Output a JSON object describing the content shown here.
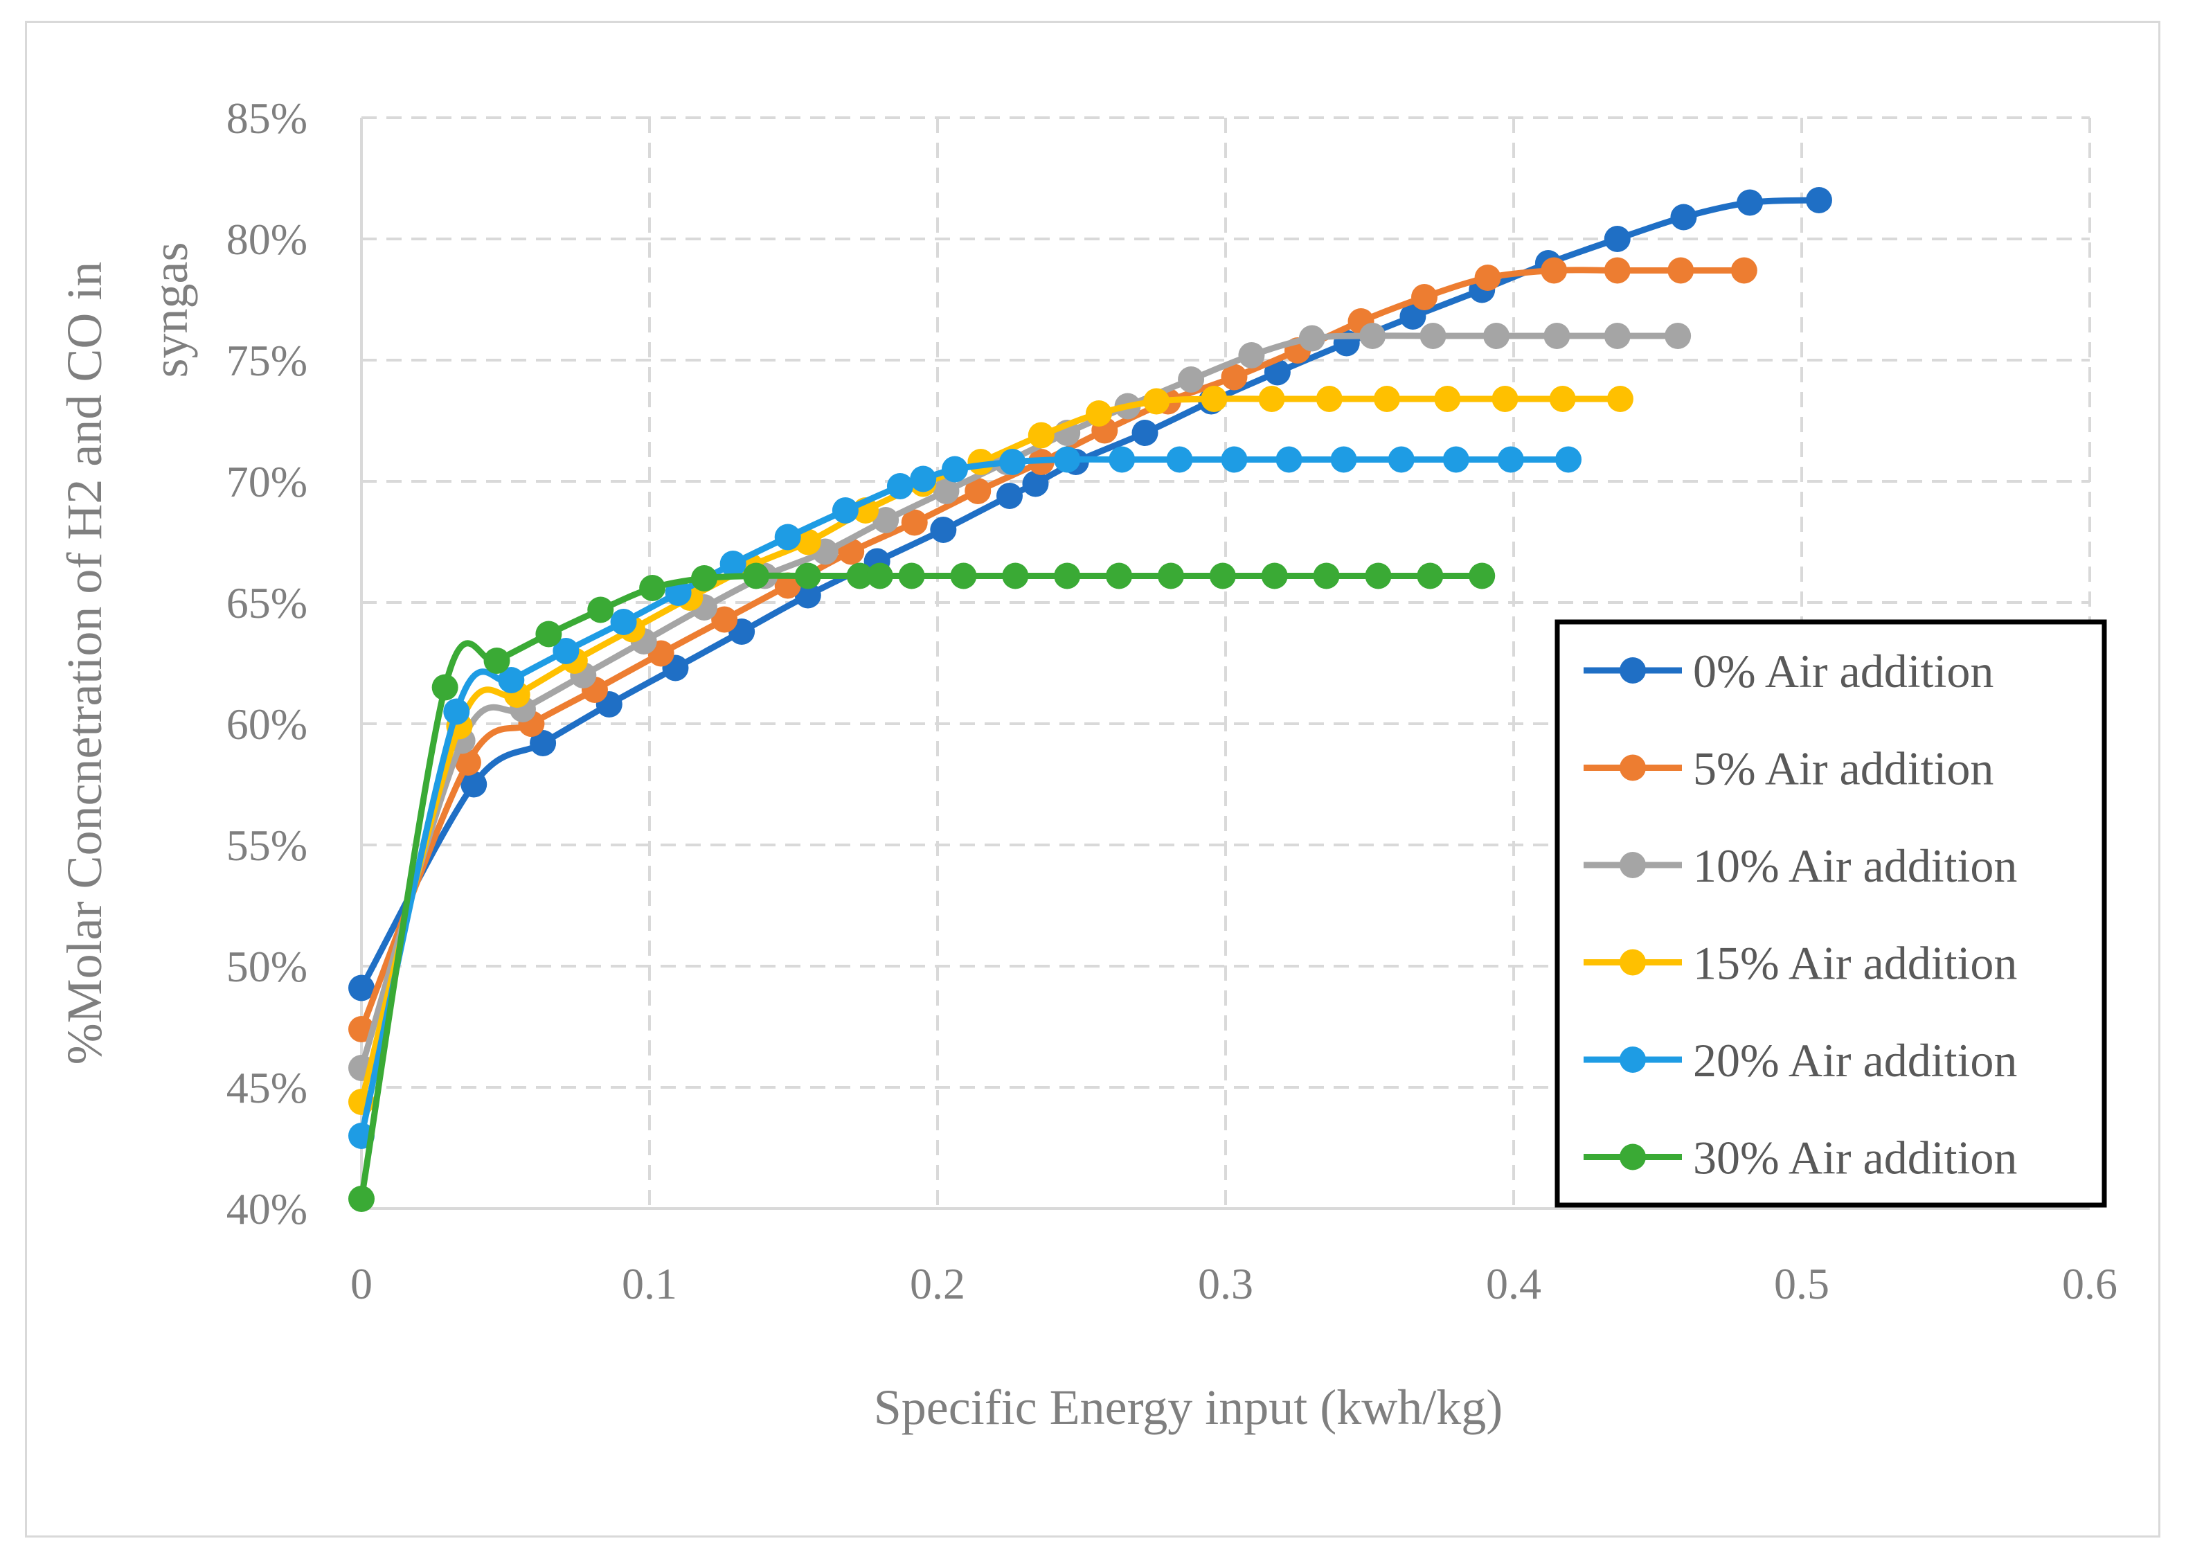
{
  "chart_data": {
    "type": "line",
    "title": "",
    "xlabel": "Specific Energy input (kwh/kg)",
    "ylabel": "%Molar Concnetration of  H2 and CO in syngas",
    "ylabel_lines": [
      "%Molar Concnetration of  H2 and CO in",
      "syngas"
    ],
    "xlim": [
      0,
      0.6
    ],
    "ylim": [
      40,
      85
    ],
    "x_ticks": [
      0,
      0.1,
      0.2,
      0.3,
      0.4,
      0.5,
      0.6
    ],
    "x_tick_labels": [
      "0",
      "0.1",
      "0.2",
      "0.3",
      "0.4",
      "0.5",
      "0.6"
    ],
    "y_ticks": [
      40,
      45,
      50,
      55,
      60,
      65,
      70,
      75,
      80,
      85
    ],
    "y_tick_labels": [
      "40%",
      "45%",
      "50%",
      "55%",
      "60%",
      "65%",
      "70%",
      "75%",
      "80%",
      "85%"
    ],
    "grid": true,
    "legend_position": "right",
    "series": [
      {
        "name": "0% Air addition",
        "color": "#1f6fc5",
        "x": [
          0,
          0.039,
          0.063,
          0.086,
          0.109,
          0.132,
          0.155,
          0.179,
          0.202,
          0.225,
          0.234,
          0.248,
          0.272,
          0.295,
          0.318,
          0.342,
          0.365,
          0.389,
          0.412,
          0.436,
          0.459,
          0.482,
          0.506
        ],
        "y": [
          49.1,
          57.5,
          59.2,
          60.8,
          62.3,
          63.8,
          65.3,
          66.7,
          68.0,
          69.4,
          69.9,
          70.8,
          72.0,
          73.3,
          74.5,
          75.7,
          76.8,
          77.9,
          79.0,
          80.0,
          80.9,
          81.5,
          81.6
        ]
      },
      {
        "name": "5% Air addition",
        "color": "#ed7d31",
        "x": [
          0,
          0.037,
          0.059,
          0.081,
          0.104,
          0.126,
          0.148,
          0.17,
          0.192,
          0.214,
          0.236,
          0.258,
          0.28,
          0.303,
          0.325,
          0.347,
          0.369,
          0.391,
          0.414,
          0.436,
          0.458,
          0.48
        ],
        "y": [
          47.4,
          58.4,
          60.0,
          61.4,
          62.9,
          64.3,
          65.7,
          67.1,
          68.3,
          69.6,
          70.8,
          72.1,
          73.3,
          74.3,
          75.4,
          76.6,
          77.6,
          78.4,
          78.7,
          78.7,
          78.7,
          78.7
        ]
      },
      {
        "name": "10% Air addition",
        "color": "#a5a5a5",
        "x": [
          0,
          0.035,
          0.056,
          0.077,
          0.098,
          0.119,
          0.14,
          0.161,
          0.182,
          0.203,
          0.224,
          0.245,
          0.266,
          0.288,
          0.309,
          0.33,
          0.351,
          0.372,
          0.394,
          0.415,
          0.436,
          0.457
        ],
        "y": [
          45.8,
          59.3,
          60.6,
          62.0,
          63.4,
          64.8,
          66.1,
          67.1,
          68.4,
          69.6,
          70.8,
          72.0,
          73.1,
          74.2,
          75.2,
          75.9,
          76.0,
          76.0,
          76.0,
          76.0,
          76.0,
          76.0
        ]
      },
      {
        "name": "15% Air addition",
        "color": "#ffc000",
        "x": [
          0,
          0.034,
          0.054,
          0.074,
          0.094,
          0.114,
          0.135,
          0.155,
          0.175,
          0.195,
          0.215,
          0.236,
          0.256,
          0.276,
          0.296,
          0.316,
          0.336,
          0.356,
          0.377,
          0.397,
          0.417,
          0.437
        ],
        "y": [
          44.4,
          59.9,
          61.2,
          62.6,
          63.9,
          65.2,
          66.5,
          67.5,
          68.8,
          69.9,
          70.8,
          71.9,
          72.8,
          73.3,
          73.4,
          73.4,
          73.4,
          73.4,
          73.4,
          73.4,
          73.4,
          73.4
        ]
      },
      {
        "name": "20% Air addition",
        "color": "#1e9ce4",
        "x": [
          0,
          0.033,
          0.052,
          0.071,
          0.091,
          0.11,
          0.129,
          0.148,
          0.168,
          0.187,
          0.195,
          0.206,
          0.226,
          0.245,
          0.264,
          0.284,
          0.303,
          0.322,
          0.341,
          0.361,
          0.38,
          0.399,
          0.419
        ],
        "y": [
          43.0,
          60.5,
          61.8,
          63.0,
          64.2,
          65.4,
          66.6,
          67.7,
          68.8,
          69.8,
          70.1,
          70.5,
          70.8,
          70.9,
          70.9,
          70.9,
          70.9,
          70.9,
          70.9,
          70.9,
          70.9,
          70.9,
          70.9
        ]
      },
      {
        "name": "30% Air addition",
        "color": "#3aaa35",
        "x": [
          0,
          0.029,
          0.047,
          0.065,
          0.083,
          0.101,
          0.119,
          0.137,
          0.155,
          0.173,
          0.18,
          0.191,
          0.209,
          0.227,
          0.245,
          0.263,
          0.281,
          0.299,
          0.317,
          0.335,
          0.353,
          0.371,
          0.389
        ],
        "y": [
          40.4,
          61.5,
          62.6,
          63.7,
          64.7,
          65.6,
          66.0,
          66.1,
          66.1,
          66.1,
          66.1,
          66.1,
          66.1,
          66.1,
          66.1,
          66.1,
          66.1,
          66.1,
          66.1,
          66.1,
          66.1,
          66.1,
          66.1
        ]
      }
    ]
  }
}
